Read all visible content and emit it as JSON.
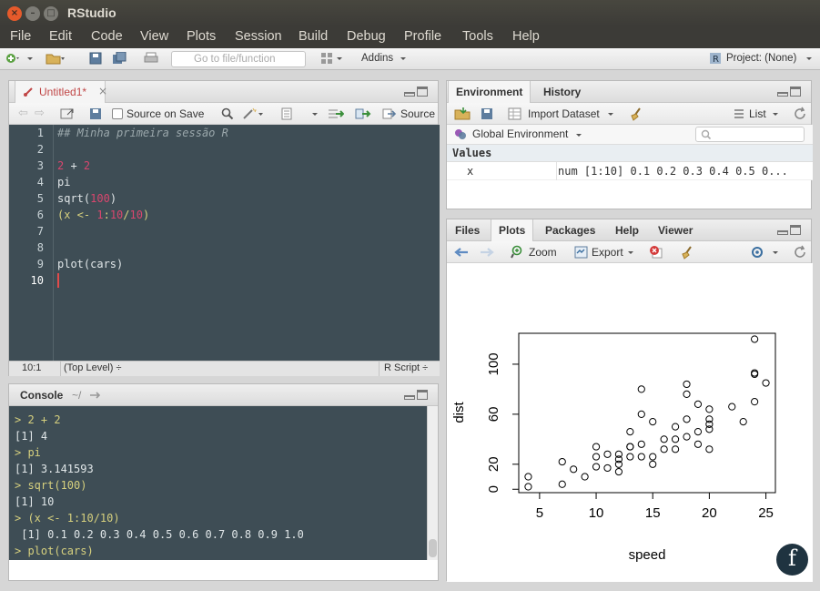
{
  "window": {
    "title": "RStudio"
  },
  "menu": [
    "File",
    "Edit",
    "Code",
    "View",
    "Plots",
    "Session",
    "Build",
    "Debug",
    "Profile",
    "Tools",
    "Help"
  ],
  "toolbar": {
    "goto_placeholder": "Go to file/function",
    "addins": "Addins",
    "project": "Project: (None)"
  },
  "editor": {
    "tab": "Untitled1*",
    "source_on_save": "Source on Save",
    "source": "Source",
    "lines": [
      "1",
      "2",
      "3",
      "4",
      "5",
      "6",
      "7",
      "8",
      "9",
      "10"
    ],
    "code": {
      "l1": "## Minha primeira sessão R",
      "l3a": "2",
      "l3b": " + ",
      "l3c": "2",
      "l4": "pi",
      "l5a": "sqrt(",
      "l5b": "100",
      "l5c": ")",
      "l6a": "(x <- ",
      "l6b": "1",
      "l6c": ":",
      "l6d": "10",
      "l6e": "/",
      "l6f": "10",
      "l6g": ")",
      "l9": "plot(cars)"
    },
    "status": {
      "pos": "10:1",
      "scope": "(Top Level) ÷",
      "type": "R Script ÷"
    }
  },
  "console": {
    "title": "Console",
    "path": "~/",
    "lines": [
      "> 2 + 2",
      "[1] 4",
      "> pi",
      "[1] 3.141593",
      "> sqrt(100)",
      "[1] 10",
      "> (x <- 1:10/10)",
      " [1] 0.1 0.2 0.3 0.4 0.5 0.6 0.7 0.8 0.9 1.0",
      "> plot(cars)",
      ">"
    ]
  },
  "environment": {
    "tabs": [
      "Environment",
      "History"
    ],
    "import": "Import Dataset",
    "list": "List",
    "scope": "Global Environment",
    "section": "Values",
    "var_name": "x",
    "var_value": "num [1:10] 0.1 0.2 0.3 0.4 0.5 0..."
  },
  "files": {
    "tabs": [
      "Files",
      "Plots",
      "Packages",
      "Help",
      "Viewer"
    ],
    "zoom": "Zoom",
    "export": "Export"
  },
  "colors": {
    "editor_bg": "#3e4d55",
    "comment": "#9aa7ab",
    "number": "#d9466e",
    "prompt": "#d6d07e"
  },
  "chart_data": {
    "type": "scatter",
    "title": "",
    "xlabel": "speed",
    "ylabel": "dist",
    "xlim": [
      4,
      25
    ],
    "ylim": [
      2,
      120
    ],
    "xticks": [
      "5",
      "10",
      "15",
      "20",
      "25"
    ],
    "yticks": [
      "0",
      "20",
      "60",
      "100"
    ],
    "x": [
      4,
      4,
      7,
      7,
      8,
      9,
      10,
      10,
      10,
      11,
      11,
      12,
      12,
      12,
      12,
      13,
      13,
      13,
      13,
      14,
      14,
      14,
      14,
      15,
      15,
      15,
      16,
      16,
      17,
      17,
      17,
      18,
      18,
      18,
      18,
      19,
      19,
      19,
      20,
      20,
      20,
      20,
      20,
      22,
      23,
      24,
      24,
      24,
      24,
      25
    ],
    "y": [
      2,
      10,
      4,
      22,
      16,
      10,
      18,
      26,
      34,
      17,
      28,
      14,
      20,
      24,
      28,
      26,
      34,
      34,
      46,
      26,
      36,
      60,
      80,
      20,
      26,
      54,
      32,
      40,
      32,
      40,
      50,
      42,
      56,
      76,
      84,
      36,
      46,
      68,
      32,
      48,
      52,
      56,
      64,
      66,
      54,
      70,
      92,
      93,
      120,
      85
    ]
  }
}
